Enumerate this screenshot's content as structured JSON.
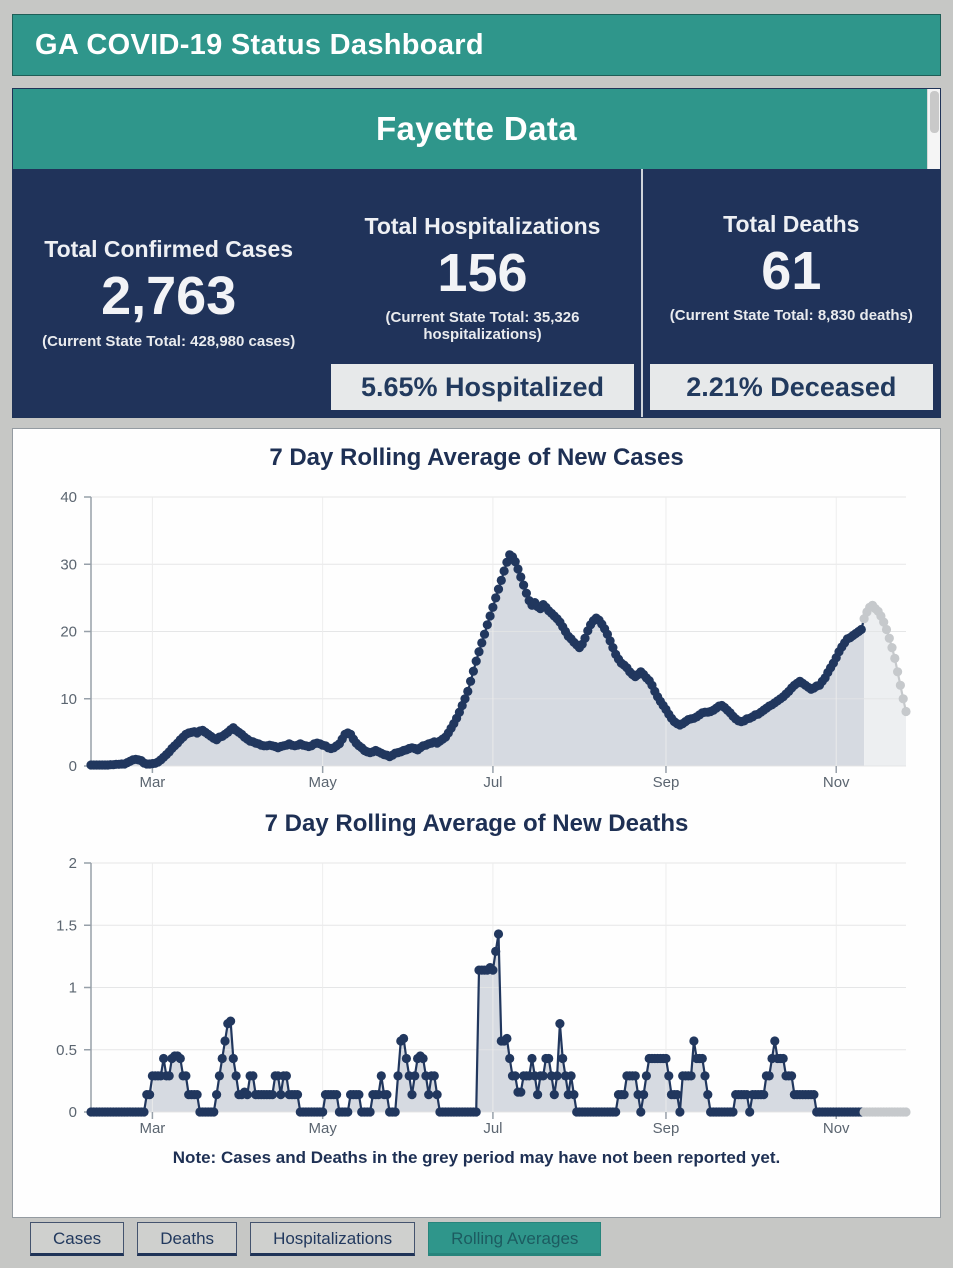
{
  "header": {
    "title": "GA COVID-19 Status Dashboard"
  },
  "county": {
    "title": "Fayette Data"
  },
  "stats": {
    "cases": {
      "label": "Total Confirmed Cases",
      "value": "2,763",
      "caption": "(Current State Total: 428,980 cases)"
    },
    "hospitalizations": {
      "label": "Total Hospitalizations",
      "value": "156",
      "caption": "(Current State Total: 35,326 hospitalizations)",
      "percent": "5.65% Hospitalized"
    },
    "deaths": {
      "label": "Total Deaths",
      "value": "61",
      "caption": "(Current State Total: 8,830 deaths)",
      "percent": "2.21% Deceased"
    }
  },
  "note": "Note: Cases and Deaths in the grey period may have not been reported yet.",
  "tabs": [
    {
      "label": "Cases",
      "active": false
    },
    {
      "label": "Deaths",
      "active": false
    },
    {
      "label": "Hospitalizations",
      "active": false
    },
    {
      "label": "Rolling Averages",
      "active": true
    }
  ],
  "colors": {
    "accent_teal": "#2f968b",
    "navy_panel": "#20335a",
    "dot": "#21375e",
    "dot_grey": "#c6c9cc",
    "area": "#d6dae1",
    "area_grey": "#edeff1",
    "grid": "#e3e4e5",
    "grid_vertical": "#ececec",
    "axis": "#97a0a9",
    "badge_bg": "#e7e9ea"
  },
  "chart_data": [
    {
      "type": "scatter",
      "title": "7 Day Rolling Average of New Cases",
      "ylabel": "",
      "xlabel": "",
      "ylim": [
        0,
        40
      ],
      "yticks": [
        0,
        10,
        20,
        30,
        40
      ],
      "x_domain": [
        0,
        292
      ],
      "xticks": [
        {
          "pos": 22,
          "label": "Mar"
        },
        {
          "pos": 83,
          "label": "May"
        },
        {
          "pos": 144,
          "label": "Jul"
        },
        {
          "pos": 206,
          "label": "Sep"
        },
        {
          "pos": 267,
          "label": "Nov"
        }
      ],
      "grey_period_start_index": 277,
      "values": [
        0.15,
        0.15,
        0.15,
        0.15,
        0.15,
        0.15,
        0.15,
        0.2,
        0.2,
        0.25,
        0.25,
        0.3,
        0.3,
        0.5,
        0.7,
        0.9,
        1.0,
        0.9,
        0.8,
        0.45,
        0.3,
        0.3,
        0.35,
        0.4,
        0.6,
        0.9,
        1.3,
        1.7,
        2.1,
        2.6,
        3.0,
        3.4,
        3.9,
        4.3,
        4.7,
        4.9,
        5.0,
        5.1,
        4.9,
        5.2,
        5.3,
        5.0,
        4.7,
        4.4,
        4.1,
        3.9,
        4.3,
        4.4,
        4.7,
        5.0,
        5.4,
        5.7,
        5.3,
        5.0,
        4.7,
        4.3,
        4.0,
        3.7,
        3.6,
        3.4,
        3.3,
        3.1,
        3.0,
        3.0,
        3.1,
        3.0,
        2.9,
        2.7,
        2.9,
        3.0,
        3.1,
        3.3,
        3.1,
        3.0,
        3.1,
        3.3,
        3.1,
        3.0,
        2.9,
        3.0,
        3.3,
        3.4,
        3.3,
        3.1,
        3.0,
        2.7,
        2.6,
        2.7,
        3.0,
        3.3,
        4.0,
        4.7,
        4.9,
        4.7,
        4.0,
        3.4,
        3.0,
        2.7,
        2.3,
        2.1,
        2.0,
        2.1,
        2.3,
        2.1,
        1.9,
        1.7,
        1.6,
        1.4,
        1.6,
        1.9,
        2.0,
        2.1,
        2.3,
        2.4,
        2.6,
        2.7,
        2.6,
        2.4,
        2.7,
        3.0,
        3.1,
        3.3,
        3.4,
        3.6,
        3.4,
        3.7,
        4.0,
        4.3,
        4.9,
        5.6,
        6.3,
        7.1,
        8.0,
        9.0,
        10.0,
        11.1,
        12.6,
        14.1,
        15.6,
        17.0,
        18.3,
        19.6,
        21.0,
        22.3,
        23.6,
        25.0,
        26.3,
        27.6,
        29.0,
        30.3,
        31.4,
        31.1,
        30.4,
        29.3,
        28.1,
        26.9,
        25.7,
        24.6,
        23.9,
        24.3,
        23.7,
        23.4,
        24.0,
        23.6,
        23.1,
        22.7,
        22.3,
        21.9,
        21.4,
        20.7,
        20.0,
        19.3,
        18.9,
        18.4,
        18.0,
        17.6,
        18.1,
        19.0,
        20.1,
        21.0,
        21.6,
        22.0,
        21.7,
        21.1,
        20.4,
        19.6,
        18.6,
        17.6,
        16.6,
        15.9,
        15.3,
        15.0,
        14.6,
        14.0,
        13.6,
        13.3,
        13.6,
        14.0,
        13.6,
        13.1,
        12.7,
        12.0,
        11.1,
        10.3,
        9.6,
        9.0,
        8.4,
        7.7,
        7.1,
        6.6,
        6.3,
        6.1,
        6.3,
        6.6,
        6.9,
        7.0,
        7.1,
        7.3,
        7.6,
        7.9,
        8.0,
        8.0,
        8.1,
        8.3,
        8.6,
        8.9,
        9.0,
        8.7,
        8.3,
        7.9,
        7.4,
        7.0,
        6.7,
        6.6,
        6.7,
        7.0,
        7.1,
        7.3,
        7.6,
        7.7,
        8.0,
        8.3,
        8.6,
        8.9,
        9.1,
        9.4,
        9.7,
        10.0,
        10.3,
        10.7,
        11.1,
        11.6,
        12.0,
        12.3,
        12.6,
        12.3,
        12.0,
        11.7,
        11.4,
        11.6,
        11.9,
        12.0,
        12.6,
        13.1,
        13.9,
        14.6,
        15.3,
        16.1,
        17.0,
        17.7,
        18.3,
        18.9,
        19.1,
        19.4,
        19.7,
        20.0,
        20.3,
        21.9,
        22.9,
        23.6,
        23.9,
        23.4,
        23.0,
        22.3,
        21.4,
        20.3,
        19.0,
        17.6,
        16.0,
        14.0,
        12.0,
        10.0,
        8.1
      ]
    },
    {
      "type": "scatter",
      "title": "7 Day Rolling Average of New Deaths",
      "ylabel": "",
      "xlabel": "",
      "ylim": [
        0,
        2
      ],
      "yticks": [
        0,
        0.5,
        1,
        1.5,
        2
      ],
      "x_domain": [
        0,
        292
      ],
      "xticks": [
        {
          "pos": 22,
          "label": "Mar"
        },
        {
          "pos": 83,
          "label": "May"
        },
        {
          "pos": 144,
          "label": "Jul"
        },
        {
          "pos": 206,
          "label": "Sep"
        },
        {
          "pos": 267,
          "label": "Nov"
        }
      ],
      "grey_period_start_index": 277,
      "values": [
        0,
        0,
        0,
        0,
        0,
        0,
        0,
        0,
        0,
        0,
        0,
        0,
        0,
        0,
        0,
        0,
        0,
        0,
        0,
        0,
        0.14,
        0.14,
        0.29,
        0.29,
        0.29,
        0.29,
        0.43,
        0.29,
        0.29,
        0.43,
        0.45,
        0.45,
        0.43,
        0.29,
        0.29,
        0.14,
        0.14,
        0.14,
        0.14,
        0,
        0,
        0,
        0,
        0,
        0,
        0.14,
        0.29,
        0.43,
        0.57,
        0.71,
        0.73,
        0.43,
        0.29,
        0.14,
        0.14,
        0.16,
        0.14,
        0.29,
        0.29,
        0.14,
        0.14,
        0.14,
        0.14,
        0.14,
        0.14,
        0.14,
        0.29,
        0.29,
        0.14,
        0.29,
        0.29,
        0.14,
        0.14,
        0.14,
        0.14,
        0,
        0,
        0,
        0,
        0,
        0,
        0,
        0,
        0,
        0.14,
        0.14,
        0.14,
        0.14,
        0.14,
        0,
        0,
        0,
        0,
        0.14,
        0.14,
        0.14,
        0.14,
        0,
        0,
        0,
        0,
        0.14,
        0.14,
        0.14,
        0.29,
        0.14,
        0.14,
        0,
        0,
        0,
        0.29,
        0.57,
        0.59,
        0.43,
        0.29,
        0.14,
        0.29,
        0.43,
        0.45,
        0.43,
        0.29,
        0.14,
        0.29,
        0.29,
        0.14,
        0,
        0,
        0,
        0,
        0,
        0,
        0,
        0,
        0,
        0,
        0,
        0,
        0,
        0,
        1.14,
        1.14,
        1.14,
        1.14,
        1.16,
        1.14,
        1.29,
        1.43,
        0.57,
        0.57,
        0.59,
        0.43,
        0.29,
        0.29,
        0.16,
        0.16,
        0.29,
        0.29,
        0.29,
        0.43,
        0.29,
        0.14,
        0.29,
        0.29,
        0.43,
        0.43,
        0.29,
        0.14,
        0.29,
        0.71,
        0.43,
        0.29,
        0.14,
        0.29,
        0.14,
        0,
        0,
        0,
        0,
        0,
        0,
        0,
        0,
        0,
        0,
        0,
        0,
        0,
        0,
        0,
        0.14,
        0.14,
        0.14,
        0.29,
        0.29,
        0.29,
        0.29,
        0.14,
        0,
        0.14,
        0.29,
        0.43,
        0.43,
        0.43,
        0.43,
        0.43,
        0.43,
        0.43,
        0.29,
        0.14,
        0.14,
        0.14,
        0,
        0.29,
        0.29,
        0.29,
        0.29,
        0.57,
        0.43,
        0.43,
        0.43,
        0.29,
        0.14,
        0,
        0,
        0,
        0,
        0,
        0,
        0,
        0,
        0,
        0.14,
        0.14,
        0.14,
        0.14,
        0.14,
        0,
        0.14,
        0.14,
        0.14,
        0.14,
        0.14,
        0.29,
        0.29,
        0.43,
        0.57,
        0.43,
        0.43,
        0.43,
        0.29,
        0.29,
        0.29,
        0.14,
        0.14,
        0.14,
        0.14,
        0.14,
        0.14,
        0.14,
        0.14,
        0,
        0,
        0,
        0,
        0,
        0,
        0,
        0,
        0,
        0,
        0,
        0,
        0,
        0,
        0,
        0,
        0,
        0,
        0,
        0,
        0,
        0,
        0,
        0,
        0,
        0,
        0,
        0,
        0,
        0,
        0,
        0,
        0
      ]
    }
  ]
}
